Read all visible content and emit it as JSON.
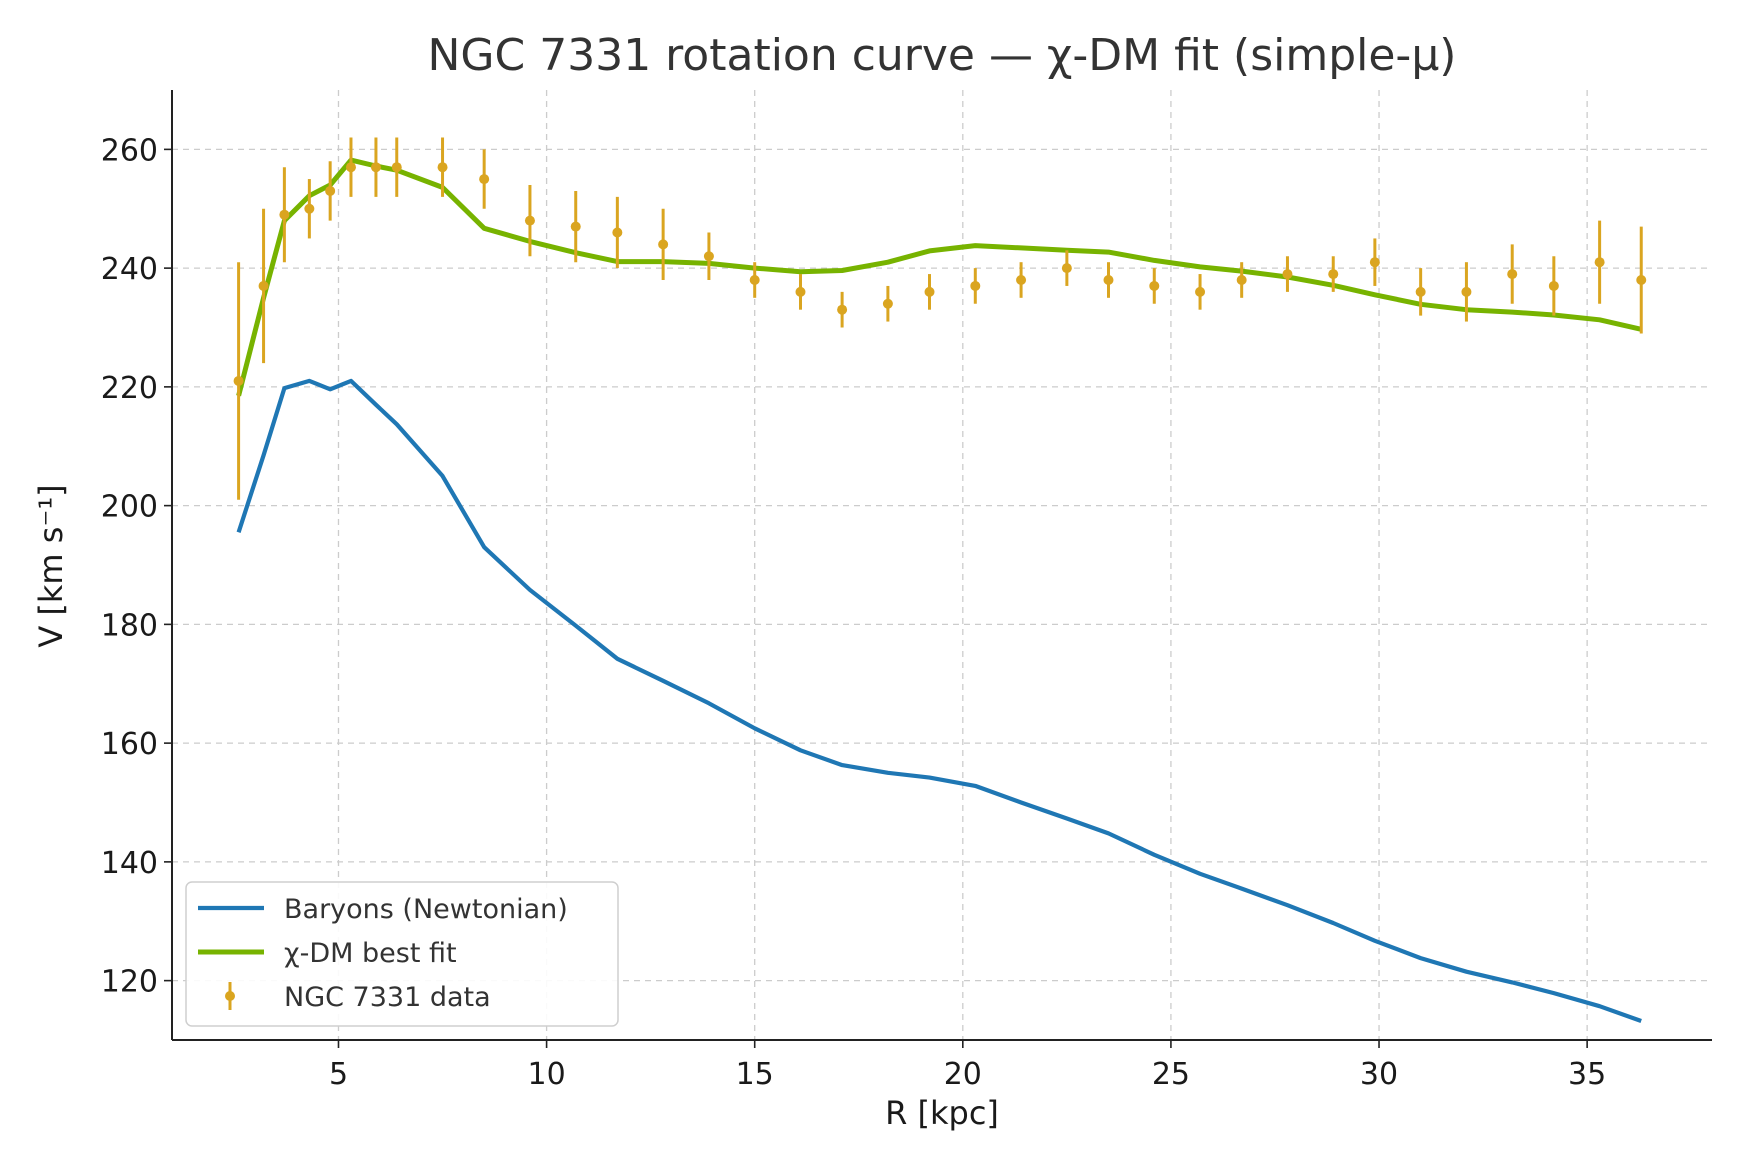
{
  "chart_data": {
    "type": "line",
    "title": "NGC 7331 rotation curve — χ-DM fit (simple-μ)",
    "xlabel": "R [kpc]",
    "ylabel": "V [km s⁻¹]",
    "xlim": [
      1,
      38
    ],
    "ylim": [
      110,
      270
    ],
    "xticks": [
      5,
      10,
      15,
      20,
      25,
      30,
      35
    ],
    "yticks": [
      120,
      140,
      160,
      180,
      200,
      220,
      240,
      260
    ],
    "grid": true,
    "legend_position": "lower-left",
    "series": [
      {
        "name": "Baryons (Newtonian)",
        "kind": "line",
        "color": "#1f77b4",
        "x": [
          2.6,
          3.2,
          3.7,
          4.3,
          4.8,
          5.3,
          5.9,
          6.4,
          7.5,
          8.5,
          9.6,
          10.7,
          11.7,
          12.8,
          13.9,
          15.0,
          16.1,
          17.1,
          18.2,
          19.2,
          20.3,
          21.4,
          22.5,
          23.5,
          24.6,
          25.7,
          26.7,
          27.8,
          28.9,
          29.9,
          31.0,
          32.1,
          33.2,
          34.2,
          35.3,
          36.3
        ],
        "y": [
          195.5,
          208.5,
          219.8,
          221.0,
          219.6,
          221.0,
          217.0,
          213.7,
          205.0,
          193.0,
          185.8,
          179.8,
          174.2,
          170.5,
          166.7,
          162.5,
          158.8,
          156.3,
          155.0,
          154.2,
          152.8,
          150.0,
          147.3,
          144.8,
          141.2,
          138.0,
          135.5,
          132.7,
          129.7,
          126.7,
          123.8,
          121.5,
          119.7,
          117.9,
          115.7,
          113.2
        ]
      },
      {
        "name": "χ-DM best fit",
        "kind": "line",
        "color": "#77b300",
        "x": [
          2.6,
          3.2,
          3.7,
          4.3,
          4.8,
          5.3,
          5.9,
          6.4,
          7.5,
          8.5,
          9.6,
          10.7,
          11.7,
          12.8,
          13.9,
          15.0,
          16.1,
          17.1,
          18.2,
          19.2,
          20.3,
          21.4,
          22.5,
          23.5,
          24.6,
          25.7,
          26.7,
          27.8,
          28.9,
          29.9,
          31.0,
          32.1,
          33.2,
          34.2,
          35.3,
          36.3
        ],
        "y": [
          218.5,
          235.0,
          248.0,
          252.2,
          254.0,
          258.2,
          257.2,
          256.5,
          253.6,
          246.7,
          244.5,
          242.6,
          241.1,
          241.1,
          240.8,
          240.0,
          239.4,
          239.6,
          241.0,
          242.9,
          243.8,
          243.4,
          243.0,
          242.7,
          241.3,
          240.2,
          239.5,
          238.5,
          237.1,
          235.5,
          233.9,
          233.0,
          232.6,
          232.1,
          231.3,
          229.7
        ]
      },
      {
        "name": "NGC 7331 data",
        "kind": "errorbar",
        "color": "#daa520",
        "x": [
          2.6,
          3.2,
          3.7,
          4.3,
          4.8,
          5.3,
          5.9,
          6.4,
          7.5,
          8.5,
          9.6,
          10.7,
          11.7,
          12.8,
          13.9,
          15.0,
          16.1,
          17.1,
          18.2,
          19.2,
          20.3,
          21.4,
          22.5,
          23.5,
          24.6,
          25.7,
          26.7,
          27.8,
          28.9,
          29.9,
          31.0,
          32.1,
          33.2,
          34.2,
          35.3,
          36.3
        ],
        "y": [
          221,
          237,
          249,
          250,
          253,
          257,
          257,
          257,
          257,
          255,
          248,
          247,
          246,
          244,
          242,
          238,
          236,
          233,
          234,
          236,
          237,
          238,
          240,
          238,
          237,
          236,
          238,
          239,
          239,
          241,
          236,
          236,
          239,
          237,
          241,
          238
        ],
        "err": [
          20,
          13,
          8,
          5,
          5,
          5,
          5,
          5,
          5,
          5,
          6,
          6,
          6,
          6,
          4,
          3,
          3,
          3,
          3,
          3,
          3,
          3,
          3,
          3,
          3,
          3,
          3,
          3,
          3,
          4,
          4,
          5,
          5,
          5,
          7,
          9
        ]
      }
    ]
  }
}
